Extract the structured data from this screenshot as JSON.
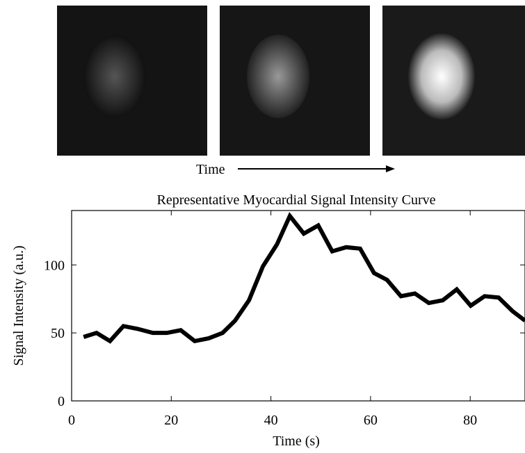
{
  "images": {
    "arrow_label": "Time"
  },
  "chart_data": {
    "type": "line",
    "title": "Representative Myocardial Signal Intensity Curve",
    "xlabel": "Time (s)",
    "ylabel": "Signal Intensity (a.u.)",
    "x": [
      2.4,
      5.0,
      7.7,
      10.4,
      13.2,
      16.3,
      19.1,
      21.9,
      24.7,
      27.5,
      30.3,
      32.8,
      35.6,
      38.4,
      41.2,
      43.8,
      46.6,
      49.5,
      52.3,
      55.1,
      57.9,
      60.7,
      63.3,
      66.1,
      68.9,
      71.7,
      74.5,
      77.3,
      80.1,
      82.9,
      85.7,
      88.5,
      91.0
    ],
    "series": [
      {
        "color": "#000000",
        "values": [
          47,
          50,
          44,
          55,
          53,
          50,
          50,
          52,
          44,
          46,
          50,
          59,
          74,
          99,
          115,
          136,
          123,
          129,
          110,
          113,
          112,
          94,
          89,
          77,
          79,
          72,
          74,
          82,
          70,
          77,
          76,
          66,
          59
        ]
      }
    ],
    "xlim": [
      0,
      91
    ],
    "ylim": [
      0,
      140
    ],
    "xticks": [
      0,
      20,
      40,
      60,
      80
    ],
    "yticks": [
      0,
      50,
      100
    ],
    "grid": false
  }
}
